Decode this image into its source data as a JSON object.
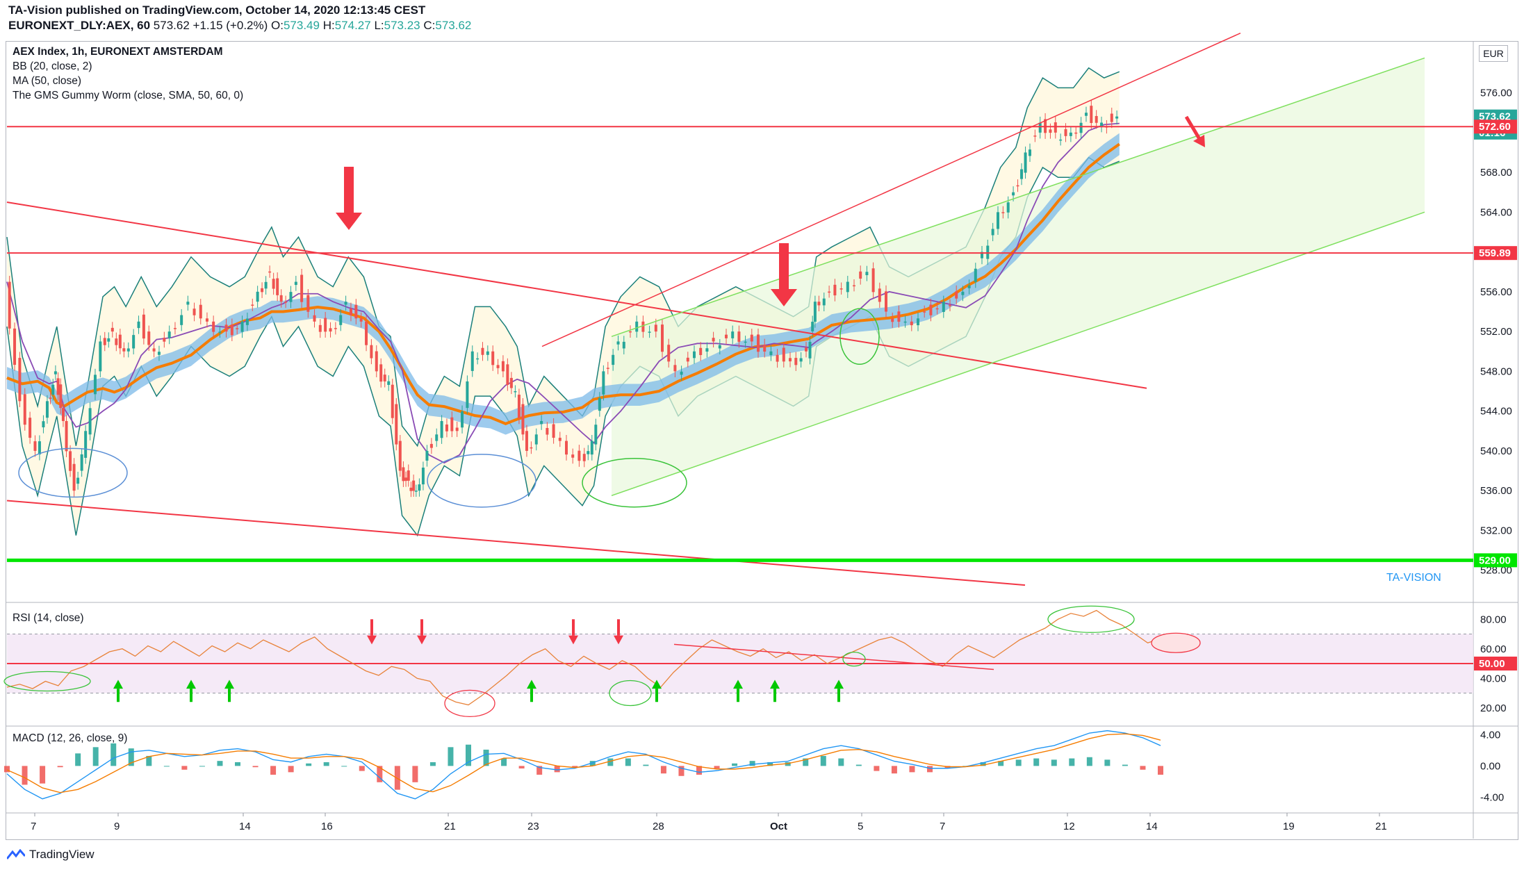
{
  "header": {
    "publisher_line": "TA-Vision published on TradingView.com, October 14, 2020 12:13:45 CEST",
    "symbol": "EURONEXT_DLY:AEX, 60",
    "last": "573.62",
    "change": "+1.15 (+0.2%)",
    "o_label": "O:",
    "o": "573.49",
    "h_label": "H:",
    "h": "574.27",
    "l_label": "L:",
    "l": "573.23",
    "c_label": "C:",
    "c": "573.62"
  },
  "legend": {
    "title": "AEX Index, 1h, EURONEXT AMSTERDAM",
    "bb": "BB (20, close, 2)",
    "ma": "MA (50, close)",
    "gms": "The GMS Gummy Worm (close, SMA, 50, 60, 0)"
  },
  "currency": "EUR",
  "watermark": "TA-VISION",
  "footer": "TradingView",
  "colors": {
    "up": "#26a69a",
    "down": "#ef5350",
    "red_line": "#f23645",
    "green_line": "#00e600",
    "channel": "#7fe05f",
    "bb": "#1a7f7a",
    "ma": "#8a4bb5",
    "worm": "#f57c00"
  },
  "chart_data": [
    {
      "type": "candlestick",
      "title": "AEX Index, 1h, EURONEXT AMSTERDAM",
      "ylim": [
        527,
        581
      ],
      "y_ticks": [
        "576.00",
        "572.00",
        "568.00",
        "564.00",
        "560.00",
        "556.00",
        "552.00",
        "548.00",
        "544.00",
        "540.00",
        "536.00",
        "532.00",
        "528.00"
      ],
      "x_ticks": [
        "7",
        "9",
        "14",
        "16",
        "21",
        "23",
        "28",
        "Oct",
        "5",
        "7",
        "12",
        "14",
        "19",
        "21"
      ],
      "price_labels": [
        {
          "text": "573.62",
          "value": 573.62,
          "color": "#26a69a"
        },
        {
          "text": "01:16",
          "value": 572.0,
          "color": "#26a69a"
        },
        {
          "text": "572.60",
          "value": 572.6,
          "color": "#f23645"
        },
        {
          "text": "559.89",
          "value": 559.89,
          "color": "#f23645"
        },
        {
          "text": "529.00",
          "value": 529.0,
          "color": "#00e600"
        }
      ],
      "levels": [
        {
          "name": "resistance",
          "value": 572.6,
          "color": "#f23645"
        },
        {
          "name": "resistance",
          "value": 559.89,
          "color": "#f23645"
        },
        {
          "name": "support",
          "value": 529.0,
          "color": "#00e600"
        }
      ],
      "close_path": [
        [
          0,
          557
        ],
        [
          8,
          545
        ],
        [
          16,
          540
        ],
        [
          22,
          545
        ],
        [
          26,
          548
        ],
        [
          30,
          543
        ],
        [
          36,
          536
        ],
        [
          42,
          542
        ],
        [
          50,
          551
        ],
        [
          56,
          552
        ],
        [
          62,
          550
        ],
        [
          70,
          553
        ],
        [
          78,
          550
        ],
        [
          86,
          552
        ],
        [
          96,
          555
        ],
        [
          106,
          553
        ],
        [
          116,
          552
        ],
        [
          124,
          553
        ],
        [
          132,
          556
        ],
        [
          138,
          558
        ],
        [
          144,
          555
        ],
        [
          152,
          557
        ],
        [
          162,
          553
        ],
        [
          170,
          552
        ],
        [
          178,
          555
        ],
        [
          186,
          553
        ],
        [
          194,
          548
        ],
        [
          200,
          547
        ],
        [
          206,
          538
        ],
        [
          210,
          537
        ],
        [
          214,
          536
        ],
        [
          220,
          540
        ],
        [
          228,
          543
        ],
        [
          236,
          542
        ],
        [
          244,
          550
        ],
        [
          252,
          550
        ],
        [
          260,
          548
        ],
        [
          266,
          546
        ],
        [
          272,
          540
        ],
        [
          280,
          543
        ],
        [
          290,
          541
        ],
        [
          300,
          539
        ],
        [
          306,
          541
        ],
        [
          312,
          548
        ],
        [
          320,
          551
        ],
        [
          330,
          553
        ],
        [
          340,
          552
        ],
        [
          350,
          548
        ],
        [
          360,
          550
        ],
        [
          370,
          551
        ],
        [
          380,
          552
        ],
        [
          390,
          551
        ],
        [
          400,
          550
        ],
        [
          410,
          549
        ],
        [
          418,
          550
        ],
        [
          422,
          555
        ],
        [
          430,
          556
        ],
        [
          440,
          557
        ],
        [
          450,
          558
        ],
        [
          460,
          554
        ],
        [
          470,
          553
        ],
        [
          480,
          554
        ],
        [
          490,
          555
        ],
        [
          500,
          556
        ],
        [
          510,
          560
        ],
        [
          518,
          564
        ],
        [
          526,
          566
        ],
        [
          532,
          570
        ],
        [
          540,
          573
        ],
        [
          548,
          572
        ],
        [
          556,
          572
        ],
        [
          564,
          574
        ],
        [
          572,
          573
        ],
        [
          580,
          573.62
        ]
      ],
      "annotations": [
        {
          "kind": "arrow",
          "dir": "down",
          "color": "#f23645"
        },
        {
          "kind": "arrow",
          "dir": "down",
          "color": "#f23645"
        },
        {
          "kind": "arrow",
          "dir": "down-right",
          "color": "#f23645"
        }
      ]
    },
    {
      "type": "line",
      "title": "RSI (14, close)",
      "ylim": [
        10,
        90
      ],
      "y_ticks": [
        "80.00",
        "60.00",
        "40.00",
        "20.00"
      ],
      "levels": [
        {
          "value": 70
        },
        {
          "value": 30
        }
      ],
      "marker_label": "50.00",
      "values": [
        34,
        36,
        33,
        38,
        35,
        45,
        48,
        53,
        58,
        60,
        55,
        62,
        58,
        65,
        60,
        55,
        62,
        58,
        64,
        60,
        66,
        62,
        58,
        64,
        68,
        60,
        55,
        50,
        45,
        42,
        48,
        46,
        40,
        38,
        28,
        24,
        22,
        28,
        35,
        42,
        50,
        56,
        60,
        52,
        48,
        55,
        50,
        46,
        52,
        48,
        40,
        34,
        44,
        52,
        60,
        66,
        62,
        58,
        55,
        60,
        54,
        58,
        52,
        56,
        50,
        54,
        58,
        62,
        66,
        68,
        64,
        58,
        52,
        48,
        56,
        62,
        58,
        54,
        60,
        66,
        70,
        74,
        80,
        84,
        82,
        86,
        80,
        76,
        70,
        64,
        67
      ]
    },
    {
      "type": "line",
      "title": "MACD (12, 26, close, 9)",
      "ylim": [
        -6,
        5
      ],
      "y_ticks": [
        "4.00",
        "0.00",
        "-4.00"
      ],
      "macd": [
        -1,
        -3,
        -4.2,
        -3.5,
        -2,
        -0.5,
        1,
        1.8,
        2,
        1.6,
        1.2,
        1.4,
        2,
        2.2,
        1.8,
        0.8,
        0.5,
        1.2,
        1.5,
        1.2,
        0.5,
        -1.5,
        -3.5,
        -4.2,
        -3,
        -1,
        0.5,
        1.5,
        1.6,
        0.8,
        -0.2,
        -0.5,
        -0.3,
        0.4,
        1.2,
        1.8,
        1.5,
        0.5,
        -0.3,
        -0.8,
        -0.6,
        -0.2,
        0.2,
        0.4,
        0.6,
        1.4,
        2.2,
        2.6,
        2.2,
        1.4,
        0.6,
        0.2,
        -0.3,
        -0.3,
        -0.1,
        0.4,
        1.0,
        1.6,
        2.2,
        2.6,
        3.4,
        4.2,
        4.5,
        4.2,
        3.6,
        2.6
      ],
      "signal": [
        -0.5,
        -1.5,
        -2.8,
        -3.4,
        -3.0,
        -2.0,
        -0.8,
        0.4,
        1.2,
        1.6,
        1.5,
        1.4,
        1.6,
        1.9,
        1.9,
        1.5,
        1.0,
        1.0,
        1.2,
        1.2,
        0.9,
        -0.2,
        -1.6,
        -2.9,
        -3.3,
        -2.5,
        -1.2,
        0.2,
        1.0,
        1.0,
        0.5,
        0.0,
        -0.2,
        0.0,
        0.6,
        1.2,
        1.4,
        1.1,
        0.5,
        -0.1,
        -0.4,
        -0.4,
        -0.2,
        0.1,
        0.3,
        0.8,
        1.4,
        2.0,
        2.1,
        1.8,
        1.2,
        0.7,
        0.2,
        -0.1,
        -0.1,
        0.1,
        0.6,
        1.1,
        1.6,
        2.1,
        2.8,
        3.5,
        4.0,
        4.1,
        3.9,
        3.3
      ]
    }
  ]
}
